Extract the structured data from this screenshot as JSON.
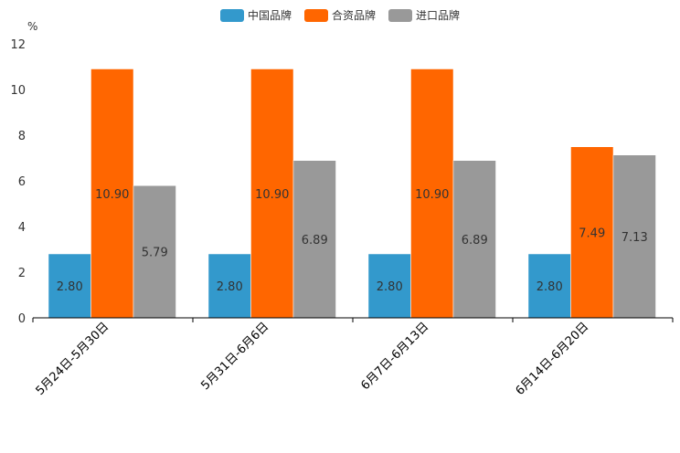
{
  "chart_data": {
    "type": "bar",
    "unit": "%",
    "categories": [
      "5月24日-5月30日",
      "5月31日-6月6日",
      "6月7日-6月13日",
      "6月14日-6月20日"
    ],
    "series": [
      {
        "name": "中国品牌",
        "color": "#3399cc",
        "values": [
          2.8,
          2.8,
          2.8,
          2.8
        ],
        "labels": [
          "2.80",
          "2.80",
          "2.80",
          "2.80"
        ]
      },
      {
        "name": "合资品牌",
        "color": "#ff6600",
        "values": [
          10.9,
          10.9,
          10.9,
          7.49
        ],
        "labels": [
          "10.90",
          "10.90",
          "10.90",
          "7.49"
        ]
      },
      {
        "name": "进口品牌",
        "color": "#999999",
        "values": [
          5.79,
          6.89,
          6.89,
          7.13
        ],
        "labels": [
          "5.79",
          "6.89",
          "6.89",
          "7.13"
        ]
      }
    ],
    "ylim": [
      0,
      12
    ],
    "yticks": [
      "0",
      "2",
      "4",
      "6",
      "8",
      "10",
      "12"
    ],
    "legend_position": "top-center"
  }
}
